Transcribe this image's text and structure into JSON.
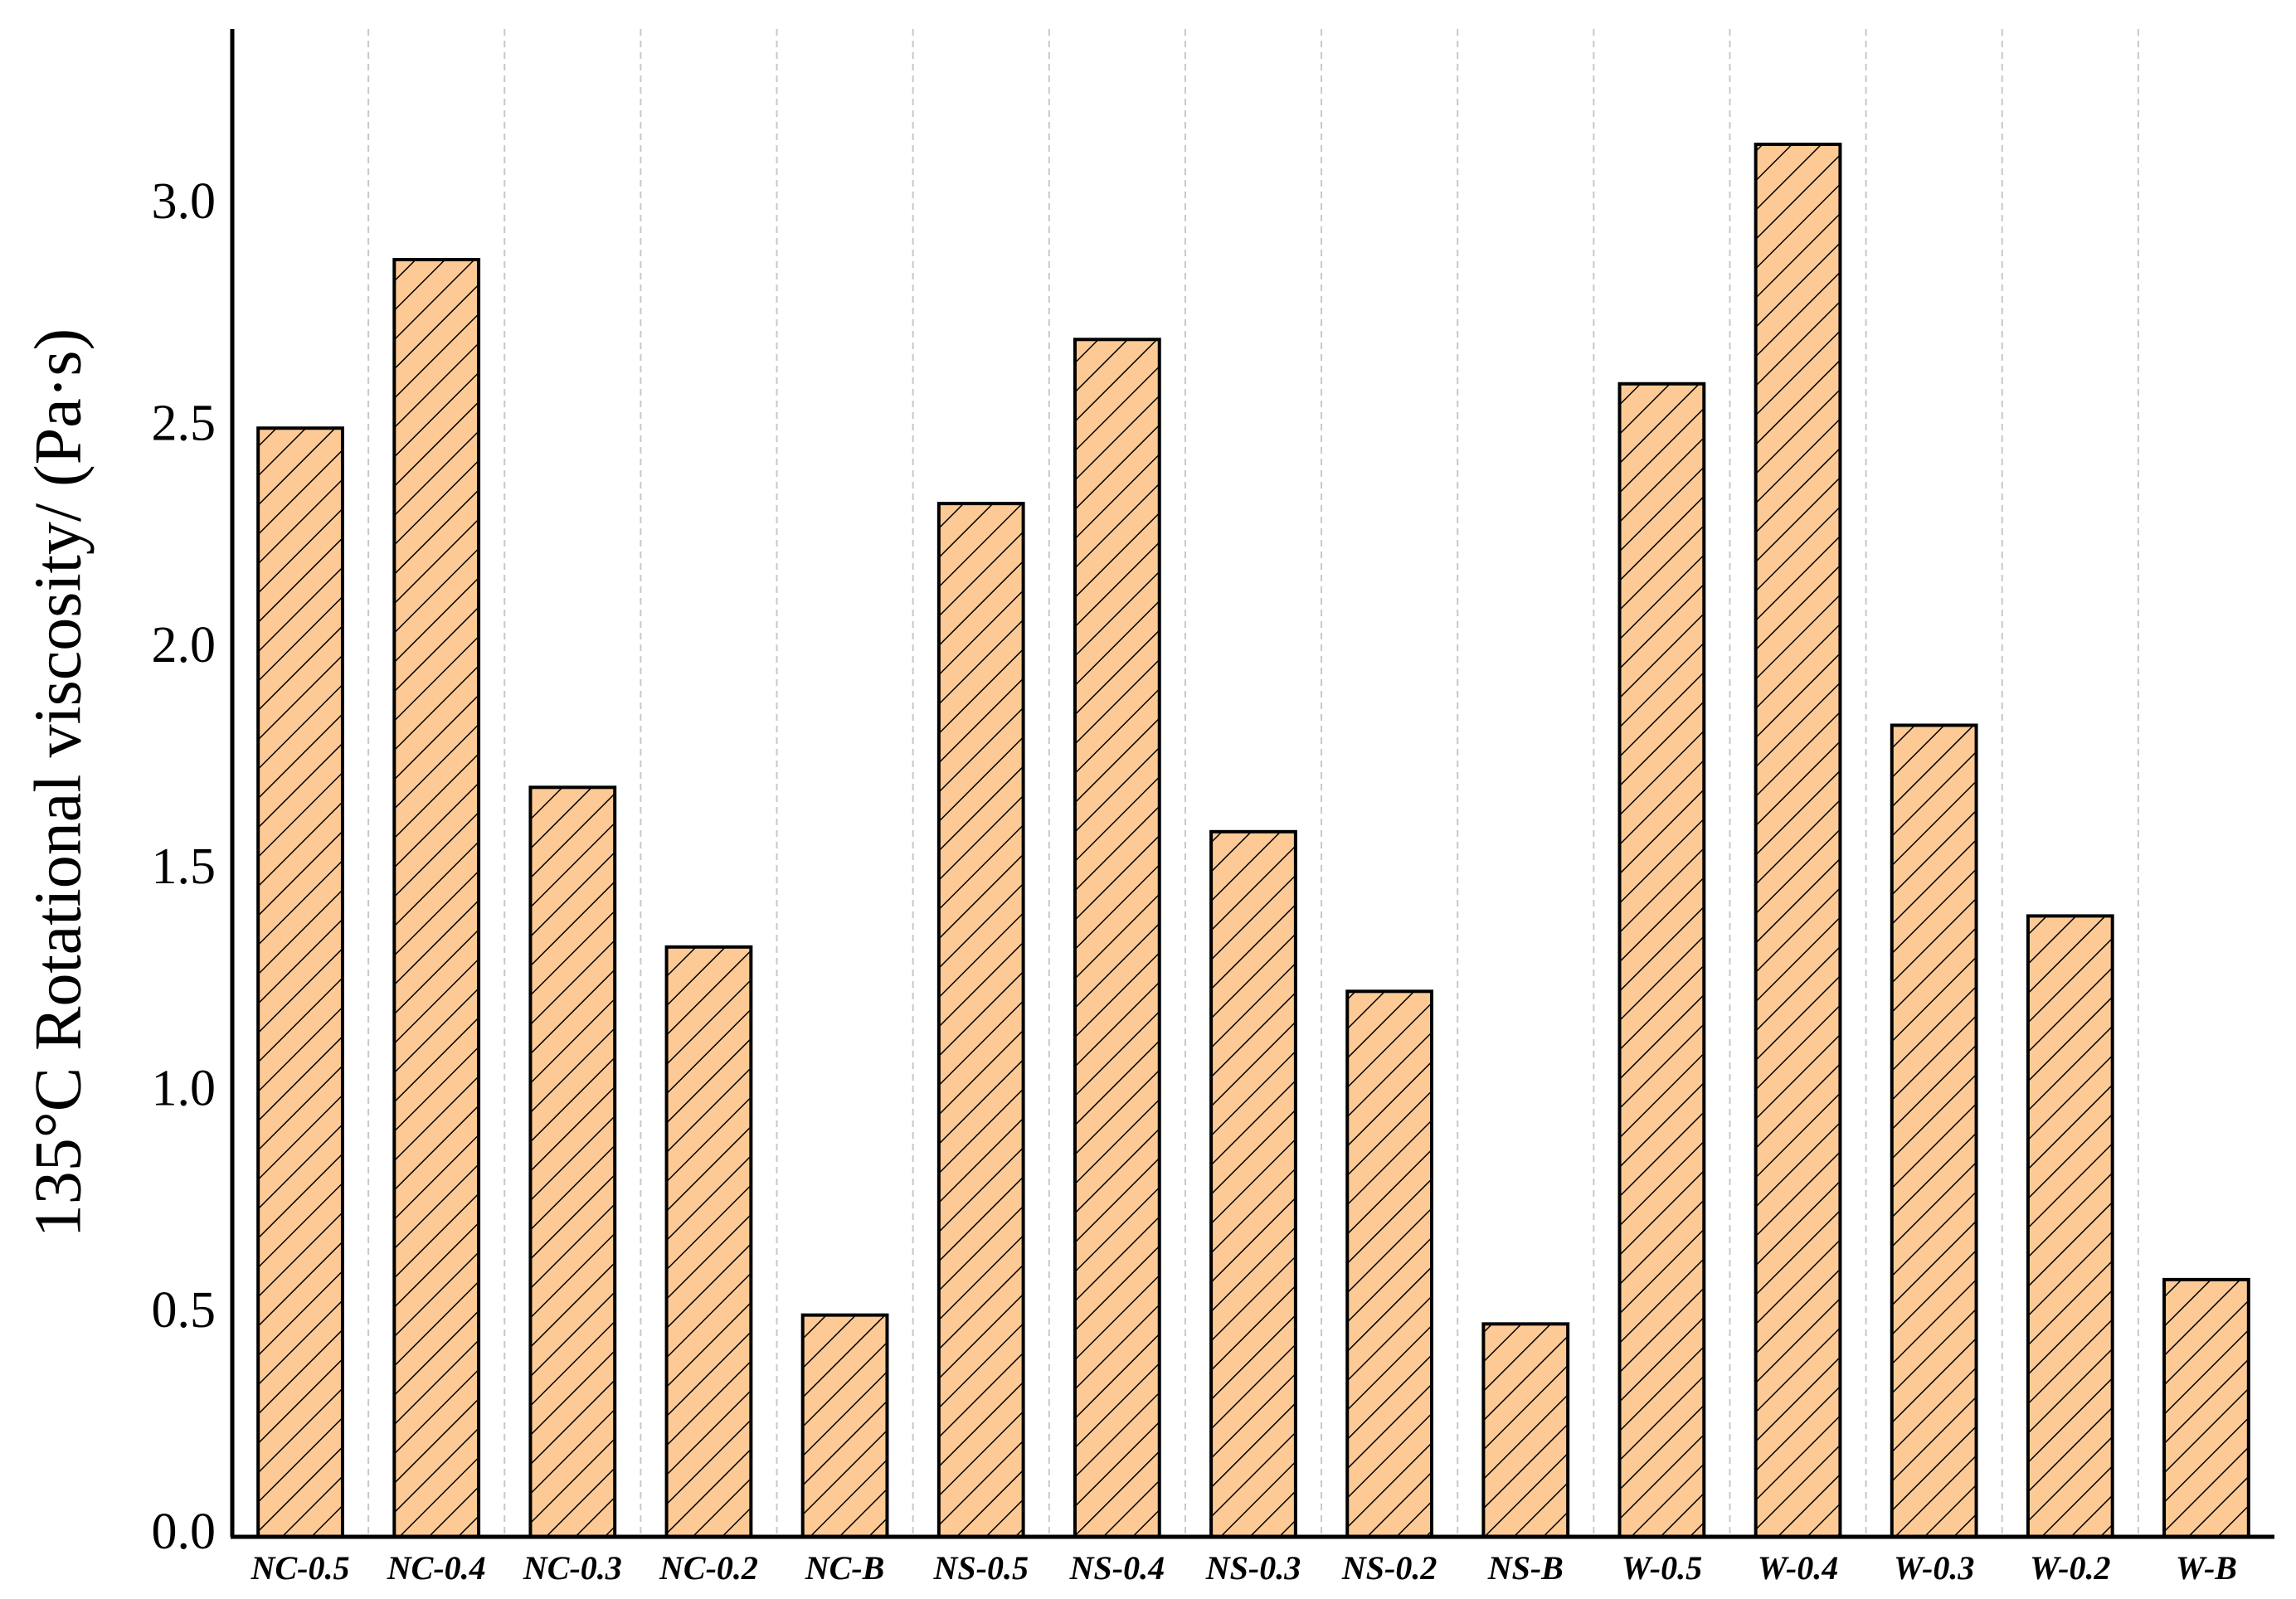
{
  "chart_data": {
    "type": "bar",
    "y_label": "135°C Rotational viscosity/ (Pa·s)",
    "categories": [
      "NC-0.5",
      "NC-0.4",
      "NC-0.3",
      "NC-0.2",
      "NC-B",
      "NS-0.5",
      "NS-0.4",
      "NS-0.3",
      "NS-0.2",
      "NS-B",
      "W-0.5",
      "W-0.4",
      "W-0.3",
      "W-0.2",
      "W-B"
    ],
    "values": [
      2.5,
      2.88,
      1.69,
      1.33,
      0.5,
      2.33,
      2.7,
      1.59,
      1.23,
      0.48,
      2.6,
      3.14,
      1.83,
      1.4,
      0.58
    ],
    "color": "#fdca95",
    "ylim": [
      0,
      3.4
    ],
    "yticks": [
      {
        "value": 0,
        "label": "0.0"
      },
      0.5,
      {
        "value": 1,
        "label": "1.0"
      },
      1.5,
      {
        "value": 2,
        "label": "2.0"
      },
      2.5,
      {
        "value": 3,
        "label": "3.0"
      }
    ]
  }
}
